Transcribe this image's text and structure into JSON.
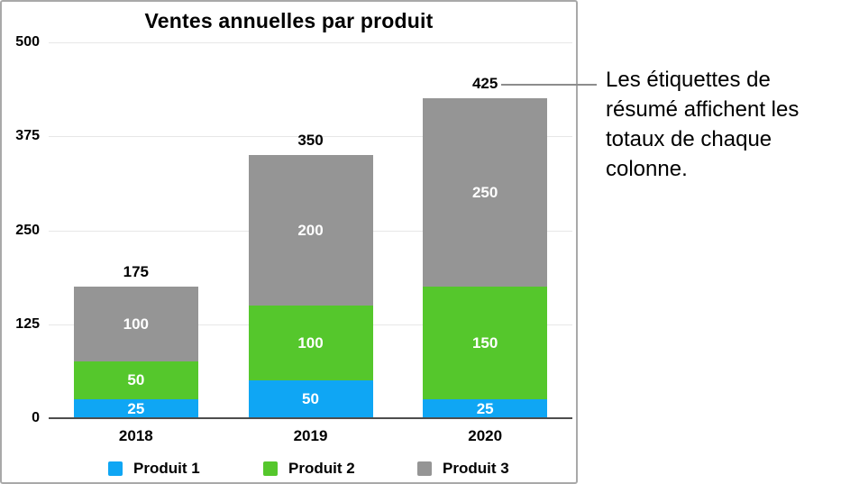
{
  "chart_data": {
    "type": "bar",
    "stacked": true,
    "title": "Ventes annuelles par produit",
    "categories": [
      "2018",
      "2019",
      "2020"
    ],
    "series": [
      {
        "name": "Produit 1",
        "color": "#0fa6f4",
        "values": [
          25,
          50,
          25
        ]
      },
      {
        "name": "Produit 2",
        "color": "#55c72c",
        "values": [
          50,
          100,
          150
        ]
      },
      {
        "name": "Produit 3",
        "color": "#959595",
        "values": [
          100,
          200,
          250
        ]
      }
    ],
    "totals": [
      175,
      350,
      425
    ],
    "y_ticks": [
      0,
      125,
      250,
      375,
      500
    ],
    "ylim": [
      0,
      500
    ],
    "grid": true,
    "legend_position": "bottom"
  },
  "callout": {
    "text": "Les étiquettes de résumé affichent les totaux de chaque colonne.",
    "lines": [
      "Les étiquettes de",
      "résumé affichent les",
      "totaux de chaque",
      "colonne."
    ]
  },
  "colors": {
    "axis_line": "#4d4d4d",
    "gridline": "#e7e7e7",
    "panel_border": "#a9a9a9",
    "callout_line": "#8c8c8c",
    "segment_label_text": "#ffffff",
    "text": "#000000"
  }
}
